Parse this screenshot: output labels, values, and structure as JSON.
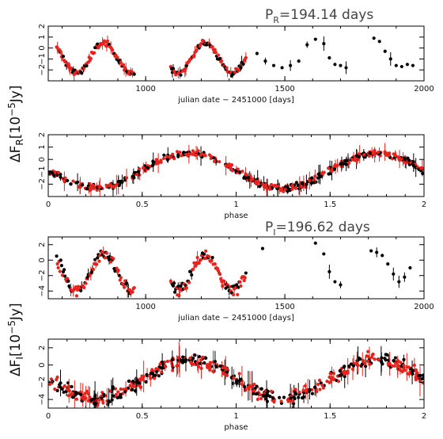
{
  "figure": {
    "period_r": {
      "prefix": "P",
      "sub": "R",
      "value": "=194.14  days"
    },
    "period_i": {
      "prefix": "P",
      "sub": "I",
      "value": "=196.62  days"
    },
    "ylabel_r": {
      "prefix": "ΔF",
      "sub": "R",
      "unit": "[10",
      "exp": "−5",
      "unit_end": "Jy]"
    },
    "ylabel_i": {
      "prefix": "ΔF",
      "sub": "I",
      "unit": "[10",
      "exp": "−5",
      "unit_end": "Jy]"
    },
    "colors": {
      "series_a": "#000000",
      "series_b": "#e8231e",
      "axes": "#000000"
    }
  },
  "chart_data": [
    {
      "type": "scatter",
      "panel": "R-band light curve",
      "xlabel": "julian date − 2451000 [days]",
      "xlim": [
        650,
        2000
      ],
      "ylim": [
        -3,
        2
      ],
      "xticks": [
        1000,
        1500,
        2000
      ],
      "xtick_labels": [
        "1000",
        "1500",
        "2000"
      ],
      "yticks": [
        -2,
        -1,
        0,
        1,
        2
      ],
      "ytick_labels": [
        "−2",
        "−1",
        "0",
        "1",
        "2"
      ],
      "series": [
        {
          "color": "#000000",
          "x": [
            1400,
            1430,
            1460,
            1490,
            1520,
            1550,
            1580,
            1610,
            1640,
            1660,
            1680,
            1700,
            1720,
            1820,
            1840,
            1860,
            1880,
            1900,
            1920,
            1940,
            1960
          ],
          "y": [
            -0.5,
            -1.2,
            -1.6,
            -1.8,
            -1.6,
            -1.2,
            0.3,
            0.8,
            0.4,
            -0.9,
            -1.5,
            -1.6,
            -1.8,
            0.9,
            0.6,
            -0.3,
            -1.0,
            -1.6,
            -1.7,
            -1.5,
            -1.6
          ]
        }
      ]
    },
    {
      "type": "scatter",
      "panel": "R-band phased",
      "xlabel": "phase",
      "xlim": [
        0,
        2
      ],
      "ylim": [
        -3,
        2
      ],
      "xticks": [
        0,
        0.5,
        1,
        1.5,
        2
      ],
      "xtick_labels": [
        "0",
        "0.5",
        "1",
        "1.5",
        "2"
      ],
      "yticks": [
        -2,
        -1,
        0,
        1,
        2
      ],
      "ytick_labels": [
        "−2",
        "−1",
        "0",
        "1",
        "2"
      ]
    },
    {
      "type": "scatter",
      "panel": "I-band light curve",
      "xlabel": "julian date − 2451000 [days]",
      "xlim": [
        650,
        2000
      ],
      "ylim": [
        -5,
        3
      ],
      "xticks": [
        1000,
        1500,
        2000
      ],
      "xtick_labels": [
        "1000",
        "1500",
        "2000"
      ],
      "yticks": [
        -4,
        -2,
        0,
        2
      ],
      "ytick_labels": [
        "−4",
        "−2",
        "0",
        "2"
      ],
      "series": [
        {
          "color": "#000000",
          "x": [
            1420,
            1610,
            1640,
            1660,
            1680,
            1700,
            1810,
            1830,
            1850,
            1870,
            1890,
            1910,
            1930,
            1950
          ],
          "y": [
            1.5,
            2.2,
            0.8,
            -1.5,
            -2.8,
            -3.2,
            1.2,
            1.0,
            0.6,
            -0.5,
            -1.8,
            -2.8,
            -2.2,
            -1.0
          ]
        }
      ]
    },
    {
      "type": "scatter",
      "panel": "I-band phased",
      "xlabel": "phase",
      "xlim": [
        0,
        2
      ],
      "ylim": [
        -5,
        3
      ],
      "xticks": [
        0,
        0.5,
        1,
        1.5,
        2
      ],
      "xtick_labels": [
        "0",
        "0.5",
        "1",
        "1.5",
        "2"
      ],
      "yticks": [
        -4,
        -2,
        0,
        2
      ],
      "ytick_labels": [
        "−4",
        "−2",
        "0",
        "2"
      ]
    }
  ]
}
